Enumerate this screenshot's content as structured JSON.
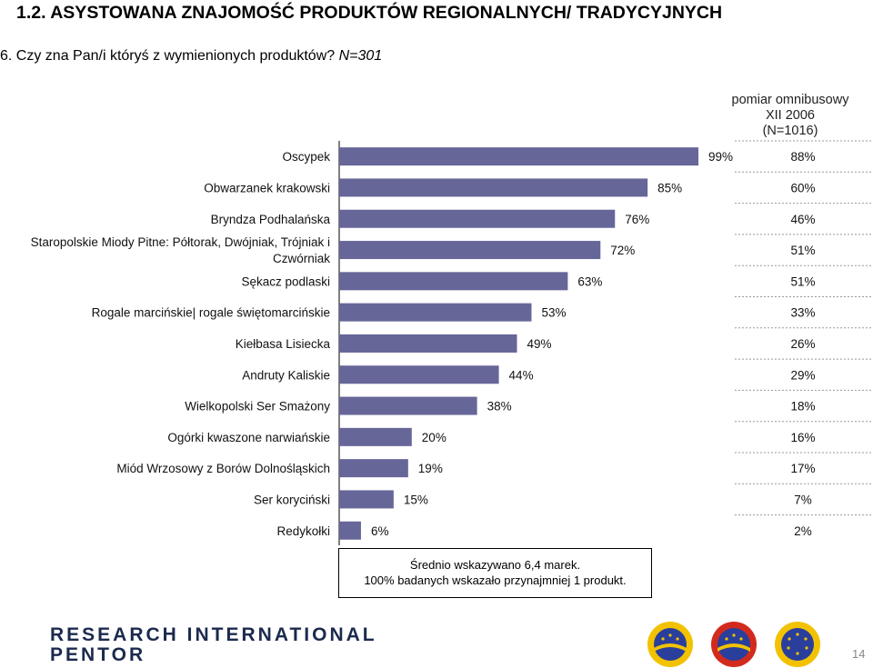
{
  "header": {
    "title": "1.2. ASYSTOWANA ZNAJOMOŚĆ PRODUKTÓW REGIONALNYCH/ TRADYCYJNYCH",
    "question": "6. Czy zna Pan/i któryś z wymienionych produktów?",
    "sample": "N=301"
  },
  "comparison_header": [
    "pomiar omnibusowy",
    "XII 2006",
    "(N=1016)"
  ],
  "chart_data": {
    "type": "bar",
    "orientation": "horizontal",
    "categories": [
      "Oscypek",
      "Obwarzanek krakowski",
      "Bryndza Podhalańska",
      "Staropolskie Miody Pitne: Półtorak, Dwójniak, Trójniak i Czwórniak",
      "Sękacz podlaski",
      "Rogale marcińskie| rogale świętomarcińskie",
      "Kiełbasa Lisiecka",
      "Andruty Kaliskie",
      "Wielkopolski Ser Smażony",
      "Ogórki kwaszone narwiańskie",
      "Miód Wrzosowy z Borów Dolnośląskich",
      "Ser koryciński",
      "Redykołki"
    ],
    "category_lines": [
      [
        "Oscypek"
      ],
      [
        "Obwarzanek krakowski"
      ],
      [
        "Bryndza Podhalańska"
      ],
      [
        "Staropolskie Miody Pitne: Półtorak, Dwójniak, Trójniak i",
        "Czwórniak"
      ],
      [
        "Sękacz podlaski"
      ],
      [
        "Rogale marcińskie| rogale świętomarcińskie"
      ],
      [
        "Kiełbasa Lisiecka"
      ],
      [
        "Andruty Kaliskie"
      ],
      [
        "Wielkopolski Ser Smażony"
      ],
      [
        "Ogórki kwaszone narwiańskie"
      ],
      [
        "Miód Wrzosowy z Borów Dolnośląskich"
      ],
      [
        "Ser koryciński"
      ],
      [
        "Redykołki"
      ]
    ],
    "values": [
      99,
      85,
      76,
      72,
      63,
      53,
      49,
      44,
      38,
      20,
      19,
      15,
      6
    ],
    "value_labels": [
      "99%",
      "85%",
      "76%",
      "72%",
      "63%",
      "53%",
      "49%",
      "44%",
      "38%",
      "20%",
      "19%",
      "15%",
      "6%"
    ],
    "comparison_values": [
      88,
      60,
      46,
      51,
      51,
      33,
      26,
      29,
      18,
      16,
      17,
      7,
      2
    ],
    "comparison_labels": [
      "88%",
      "60%",
      "46%",
      "51%",
      "51%",
      "33%",
      "26%",
      "29%",
      "18%",
      "16%",
      "17%",
      "7%",
      "2%"
    ],
    "xlim": [
      0,
      100
    ],
    "bar_color": "#666699"
  },
  "notes": [
    "Średnio  wskazywano 6,4  marek.",
    "100% badanych wskazało przynajmniej 1 produkt."
  ],
  "logo": [
    "RESEARCH INTERNATIONAL",
    "PENTOR"
  ],
  "seals": [
    "chronione-oznaczenie-geograficzne-seal",
    "chroniona-nazwa-pochodzenia-seal",
    "gwarantowana-tradycyjna-specjalnosc-seal"
  ],
  "page_number": "14"
}
